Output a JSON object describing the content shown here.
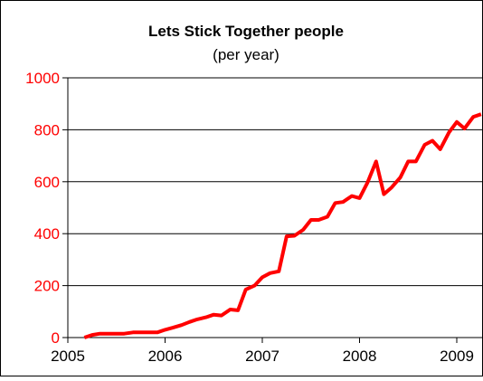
{
  "chart_data": {
    "type": "line",
    "title": "Lets Stick Together people",
    "subtitle": "(per year)",
    "xlabel": "",
    "ylabel": "",
    "xlim": [
      2005,
      2009.2
    ],
    "ylim": [
      0,
      1000
    ],
    "x_ticks": [
      2005,
      2006,
      2007,
      2008,
      2009
    ],
    "x_tick_labels": [
      "2005",
      "2006",
      "2007",
      "2008",
      "2009"
    ],
    "y_ticks": [
      0,
      200,
      400,
      600,
      800,
      1000
    ],
    "y_tick_labels": [
      "0",
      "200",
      "400",
      "600",
      "800",
      "1000"
    ],
    "grid": "horizontal",
    "series": [
      {
        "color": "#ff0000",
        "x": [
          2005.17,
          2005.25,
          2005.33,
          2005.42,
          2005.5,
          2005.58,
          2005.67,
          2005.75,
          2005.83,
          2005.92,
          2006.0,
          2006.08,
          2006.17,
          2006.25,
          2006.33,
          2006.42,
          2006.5,
          2006.58,
          2006.67,
          2006.75,
          2006.83,
          2006.92,
          2007.0,
          2007.08,
          2007.17,
          2007.25,
          2007.33,
          2007.42,
          2007.5,
          2007.58,
          2007.67,
          2007.75,
          2007.83,
          2007.92,
          2008.0,
          2008.08,
          2008.17,
          2008.25,
          2008.33,
          2008.42,
          2008.5,
          2008.58,
          2008.67,
          2008.75,
          2008.83,
          2008.92,
          2009.0,
          2009.08,
          2009.17,
          2009.25
        ],
        "y": [
          0,
          10,
          15,
          15,
          15,
          15,
          20,
          20,
          20,
          20,
          30,
          38,
          48,
          60,
          70,
          78,
          88,
          85,
          108,
          105,
          185,
          200,
          232,
          248,
          255,
          390,
          392,
          415,
          453,
          453,
          465,
          518,
          522,
          545,
          537,
          595,
          678,
          552,
          578,
          617,
          678,
          678,
          742,
          758,
          725,
          790,
          830,
          805,
          850,
          860
        ]
      }
    ]
  }
}
